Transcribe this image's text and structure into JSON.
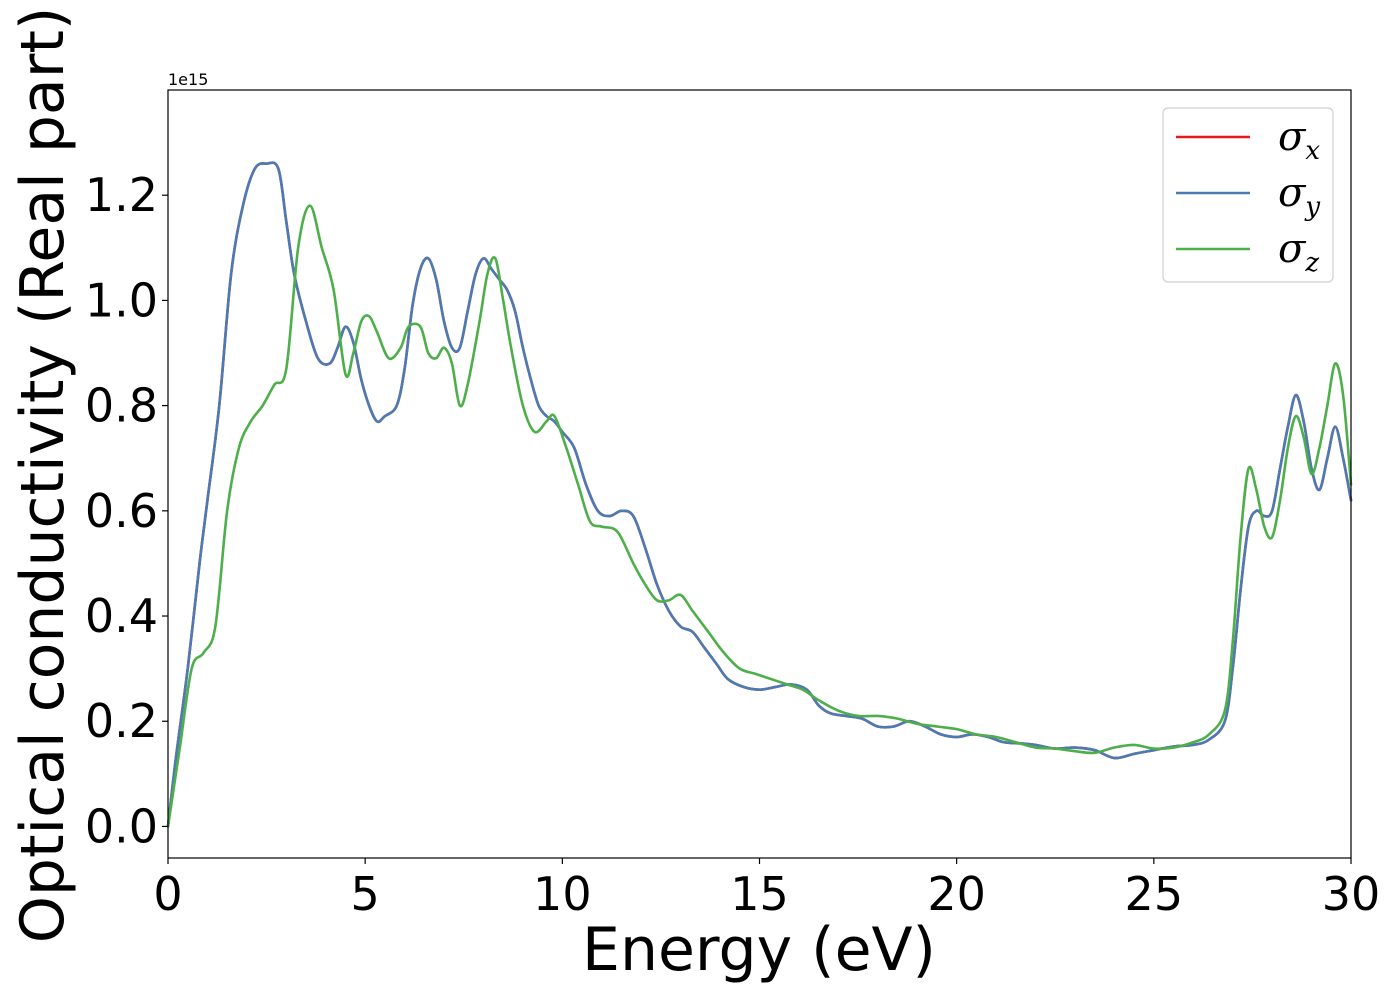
{
  "chart_data": {
    "type": "line",
    "xlabel": "Energy (eV)",
    "ylabel": "Optical conductivity (Real part)",
    "y_offset_text": "1e15",
    "xlim": [
      0,
      30
    ],
    "ylim": [
      -0.06,
      1.4
    ],
    "y_scale_factor": 1000000000000000.0,
    "grid": false,
    "legend_position": "top-right",
    "xticks": [
      0,
      5,
      10,
      15,
      20,
      25,
      30
    ],
    "xtick_labels": [
      "0",
      "5",
      "10",
      "15",
      "20",
      "25",
      "30"
    ],
    "yticks": [
      0.0,
      0.2,
      0.4,
      0.6,
      0.8,
      1.0,
      1.2
    ],
    "ytick_labels": [
      "0.0",
      "0.2",
      "0.4",
      "0.6",
      "0.8",
      "1.0",
      "1.2"
    ],
    "series": [
      {
        "name": "σx",
        "symbol": "σ",
        "subscript": "x",
        "color": "#e41a1c",
        "x": [
          0,
          0.2,
          0.5,
          0.8,
          1.0,
          1.3,
          1.6,
          1.9,
          2.2,
          2.5,
          2.8,
          3.0,
          3.2,
          3.5,
          3.8,
          4.1,
          4.3,
          4.5,
          4.7,
          4.9,
          5.1,
          5.3,
          5.5,
          5.8,
          6.0,
          6.2,
          6.4,
          6.6,
          6.8,
          7.0,
          7.2,
          7.4,
          7.6,
          7.8,
          8.0,
          8.2,
          8.4,
          8.6,
          8.8,
          9.0,
          9.2,
          9.4,
          9.6,
          9.8,
          10.0,
          10.3,
          10.6,
          10.9,
          11.2,
          11.5,
          11.8,
          12.1,
          12.4,
          12.7,
          13.0,
          13.3,
          13.6,
          13.9,
          14.2,
          14.6,
          15.0,
          15.4,
          15.8,
          16.2,
          16.5,
          16.8,
          17.2,
          17.6,
          18.0,
          18.4,
          18.8,
          19.2,
          19.6,
          20.0,
          20.4,
          20.8,
          21.2,
          21.6,
          22.0,
          22.5,
          23.0,
          23.5,
          24.0,
          24.5,
          25.0,
          25.5,
          26.0,
          26.4,
          26.8,
          27.0,
          27.2,
          27.4,
          27.6,
          27.8,
          28.0,
          28.2,
          28.4,
          28.6,
          28.8,
          29.0,
          29.2,
          29.4,
          29.6,
          29.8,
          30.0
        ],
        "y": [
          0.0,
          0.13,
          0.3,
          0.5,
          0.62,
          0.8,
          1.05,
          1.18,
          1.25,
          1.26,
          1.25,
          1.15,
          1.05,
          0.96,
          0.89,
          0.88,
          0.91,
          0.95,
          0.92,
          0.85,
          0.8,
          0.77,
          0.78,
          0.8,
          0.87,
          0.99,
          1.06,
          1.08,
          1.04,
          0.96,
          0.91,
          0.91,
          0.98,
          1.05,
          1.08,
          1.06,
          1.04,
          1.02,
          0.98,
          0.91,
          0.85,
          0.8,
          0.78,
          0.77,
          0.75,
          0.72,
          0.65,
          0.6,
          0.59,
          0.6,
          0.59,
          0.53,
          0.46,
          0.41,
          0.38,
          0.37,
          0.34,
          0.31,
          0.28,
          0.265,
          0.26,
          0.265,
          0.27,
          0.26,
          0.23,
          0.215,
          0.21,
          0.205,
          0.19,
          0.19,
          0.2,
          0.19,
          0.175,
          0.17,
          0.175,
          0.17,
          0.16,
          0.158,
          0.155,
          0.148,
          0.15,
          0.145,
          0.13,
          0.138,
          0.145,
          0.152,
          0.155,
          0.165,
          0.2,
          0.3,
          0.45,
          0.57,
          0.6,
          0.59,
          0.6,
          0.68,
          0.76,
          0.82,
          0.77,
          0.68,
          0.64,
          0.7,
          0.76,
          0.7,
          0.62
        ]
      },
      {
        "name": "σy",
        "symbol": "σ",
        "subscript": "y",
        "color": "#4a7bb5",
        "x": [
          0,
          0.2,
          0.5,
          0.8,
          1.0,
          1.3,
          1.6,
          1.9,
          2.2,
          2.5,
          2.8,
          3.0,
          3.2,
          3.5,
          3.8,
          4.1,
          4.3,
          4.5,
          4.7,
          4.9,
          5.1,
          5.3,
          5.5,
          5.8,
          6.0,
          6.2,
          6.4,
          6.6,
          6.8,
          7.0,
          7.2,
          7.4,
          7.6,
          7.8,
          8.0,
          8.2,
          8.4,
          8.6,
          8.8,
          9.0,
          9.2,
          9.4,
          9.6,
          9.8,
          10.0,
          10.3,
          10.6,
          10.9,
          11.2,
          11.5,
          11.8,
          12.1,
          12.4,
          12.7,
          13.0,
          13.3,
          13.6,
          13.9,
          14.2,
          14.6,
          15.0,
          15.4,
          15.8,
          16.2,
          16.5,
          16.8,
          17.2,
          17.6,
          18.0,
          18.4,
          18.8,
          19.2,
          19.6,
          20.0,
          20.4,
          20.8,
          21.2,
          21.6,
          22.0,
          22.5,
          23.0,
          23.5,
          24.0,
          24.5,
          25.0,
          25.5,
          26.0,
          26.4,
          26.8,
          27.0,
          27.2,
          27.4,
          27.6,
          27.8,
          28.0,
          28.2,
          28.4,
          28.6,
          28.8,
          29.0,
          29.2,
          29.4,
          29.6,
          29.8,
          30.0
        ],
        "y": [
          0.0,
          0.13,
          0.3,
          0.5,
          0.62,
          0.8,
          1.05,
          1.18,
          1.25,
          1.26,
          1.25,
          1.15,
          1.05,
          0.96,
          0.89,
          0.88,
          0.91,
          0.95,
          0.92,
          0.85,
          0.8,
          0.77,
          0.78,
          0.8,
          0.87,
          0.99,
          1.06,
          1.08,
          1.04,
          0.96,
          0.91,
          0.91,
          0.98,
          1.05,
          1.08,
          1.06,
          1.04,
          1.02,
          0.98,
          0.91,
          0.85,
          0.8,
          0.78,
          0.77,
          0.75,
          0.72,
          0.65,
          0.6,
          0.59,
          0.6,
          0.59,
          0.53,
          0.46,
          0.41,
          0.38,
          0.37,
          0.34,
          0.31,
          0.28,
          0.265,
          0.26,
          0.265,
          0.27,
          0.26,
          0.23,
          0.215,
          0.21,
          0.205,
          0.19,
          0.19,
          0.2,
          0.19,
          0.175,
          0.17,
          0.175,
          0.17,
          0.16,
          0.158,
          0.155,
          0.148,
          0.15,
          0.145,
          0.13,
          0.138,
          0.145,
          0.152,
          0.155,
          0.165,
          0.2,
          0.3,
          0.45,
          0.57,
          0.6,
          0.59,
          0.6,
          0.68,
          0.76,
          0.82,
          0.77,
          0.68,
          0.64,
          0.7,
          0.76,
          0.7,
          0.62
        ]
      },
      {
        "name": "σz",
        "symbol": "σ",
        "subscript": "z",
        "color": "#4daf4a",
        "x": [
          0,
          0.3,
          0.6,
          0.9,
          1.2,
          1.5,
          1.8,
          2.1,
          2.4,
          2.7,
          3.0,
          3.3,
          3.6,
          3.9,
          4.2,
          4.5,
          4.7,
          4.9,
          5.1,
          5.3,
          5.6,
          5.9,
          6.1,
          6.4,
          6.6,
          6.8,
          7.0,
          7.2,
          7.4,
          7.6,
          7.9,
          8.1,
          8.3,
          8.5,
          8.7,
          9.0,
          9.3,
          9.6,
          9.8,
          10.1,
          10.4,
          10.7,
          11.0,
          11.4,
          11.8,
          12.1,
          12.4,
          12.7,
          13.0,
          13.3,
          13.7,
          14.1,
          14.5,
          14.9,
          15.3,
          15.7,
          16.1,
          16.5,
          17.0,
          17.5,
          18.0,
          18.5,
          19.0,
          19.5,
          20.0,
          20.5,
          21.0,
          21.5,
          22.0,
          22.5,
          23.0,
          23.5,
          24.0,
          24.5,
          25.0,
          25.5,
          26.0,
          26.4,
          26.8,
          27.0,
          27.2,
          27.4,
          27.6,
          27.8,
          28.0,
          28.2,
          28.4,
          28.6,
          28.8,
          29.0,
          29.2,
          29.4,
          29.6,
          29.8,
          30.0
        ],
        "y": [
          0.0,
          0.15,
          0.3,
          0.33,
          0.38,
          0.6,
          0.72,
          0.77,
          0.8,
          0.84,
          0.87,
          1.1,
          1.18,
          1.1,
          1.02,
          0.86,
          0.9,
          0.96,
          0.97,
          0.94,
          0.89,
          0.91,
          0.95,
          0.95,
          0.9,
          0.89,
          0.91,
          0.88,
          0.8,
          0.84,
          0.96,
          1.05,
          1.08,
          1.0,
          0.91,
          0.8,
          0.75,
          0.77,
          0.78,
          0.72,
          0.65,
          0.58,
          0.57,
          0.56,
          0.5,
          0.46,
          0.43,
          0.43,
          0.44,
          0.41,
          0.37,
          0.33,
          0.3,
          0.29,
          0.28,
          0.27,
          0.26,
          0.24,
          0.22,
          0.21,
          0.21,
          0.205,
          0.195,
          0.19,
          0.185,
          0.175,
          0.17,
          0.16,
          0.15,
          0.148,
          0.143,
          0.14,
          0.15,
          0.155,
          0.148,
          0.15,
          0.16,
          0.175,
          0.22,
          0.35,
          0.55,
          0.68,
          0.64,
          0.57,
          0.55,
          0.62,
          0.72,
          0.78,
          0.74,
          0.67,
          0.72,
          0.8,
          0.88,
          0.82,
          0.65
        ]
      }
    ]
  }
}
